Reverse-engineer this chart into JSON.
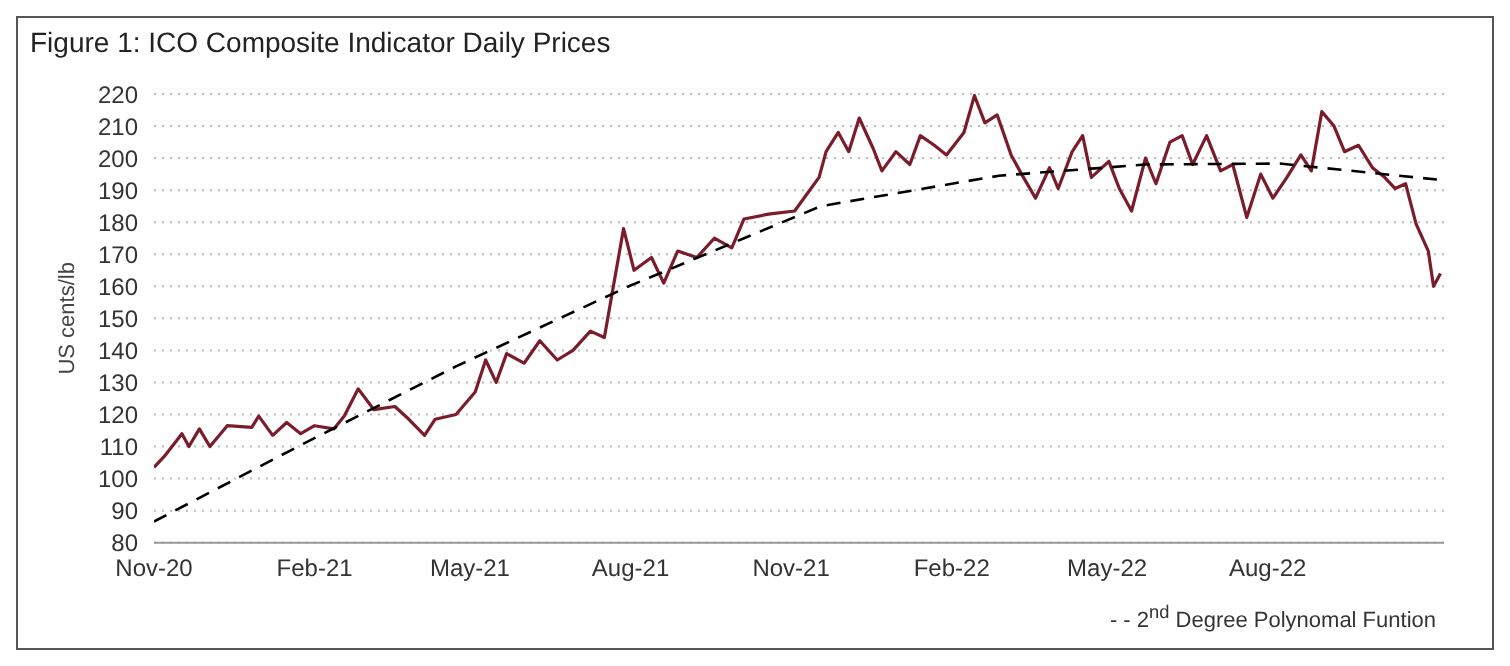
{
  "chart_data": {
    "type": "line",
    "title": "Figure 1: ICO Composite Indicator Daily Prices",
    "ylabel": "US cents/lb",
    "xlim": [
      "2020-11-01",
      "2022-11-10"
    ],
    "xticks": [
      {
        "value": "2020-11-01",
        "label": "Nov-20"
      },
      {
        "value": "2021-02-01",
        "label": "Feb-21"
      },
      {
        "value": "2021-05-01",
        "label": "May-21"
      },
      {
        "value": "2021-08-01",
        "label": "Aug-21"
      },
      {
        "value": "2021-11-01",
        "label": "Nov-21"
      },
      {
        "value": "2022-02-01",
        "label": "Feb-22"
      },
      {
        "value": "2022-05-01",
        "label": "May-22"
      },
      {
        "value": "2022-08-01",
        "label": "Aug-22"
      }
    ],
    "ylim": [
      80,
      220
    ],
    "yticks": [
      80,
      90,
      100,
      110,
      120,
      130,
      140,
      150,
      160,
      170,
      180,
      190,
      200,
      210,
      220
    ],
    "grid": "y",
    "legend": "bottom right",
    "marker": "none",
    "series": [
      {
        "color": "#7b1c2c",
        "line_style": "solid",
        "x": [
          "2020-11-01",
          "2020-11-07",
          "2020-11-17",
          "2020-11-21",
          "2020-11-27",
          "2020-12-03",
          "2020-12-13",
          "2020-12-27",
          "2020-12-31",
          "2021-01-08",
          "2021-01-16",
          "2021-01-24",
          "2021-02-01",
          "2021-02-12",
          "2021-02-18",
          "2021-02-26",
          "2021-03-07",
          "2021-03-19",
          "2021-03-27",
          "2021-04-05",
          "2021-04-11",
          "2021-04-23",
          "2021-05-04",
          "2021-05-10",
          "2021-05-16",
          "2021-05-22",
          "2021-06-01",
          "2021-06-10",
          "2021-06-20",
          "2021-06-29",
          "2021-07-09",
          "2021-07-17",
          "2021-07-28",
          "2021-08-03",
          "2021-08-13",
          "2021-08-20",
          "2021-08-28",
          "2021-09-08",
          "2021-09-18",
          "2021-09-28",
          "2021-10-05",
          "2021-10-19",
          "2021-11-03",
          "2021-11-11",
          "2021-11-17",
          "2021-11-21",
          "2021-11-28",
          "2021-12-04",
          "2021-12-10",
          "2021-12-18",
          "2021-12-23",
          "2021-12-31",
          "2022-01-08",
          "2022-01-14",
          "2022-01-22",
          "2022-01-29",
          "2022-02-08",
          "2022-02-14",
          "2022-02-20",
          "2022-02-27",
          "2022-03-07",
          "2022-03-13",
          "2022-03-21",
          "2022-03-29",
          "2022-04-03",
          "2022-04-11",
          "2022-04-17",
          "2022-04-22",
          "2022-05-02",
          "2022-05-08",
          "2022-05-15",
          "2022-05-23",
          "2022-05-29",
          "2022-06-06",
          "2022-06-13",
          "2022-06-19",
          "2022-06-27",
          "2022-07-05",
          "2022-07-12",
          "2022-07-20",
          "2022-07-28",
          "2022-08-04",
          "2022-08-12",
          "2022-08-20",
          "2022-08-26",
          "2022-09-01",
          "2022-09-08",
          "2022-09-14",
          "2022-09-22",
          "2022-09-30",
          "2022-10-07",
          "2022-10-13",
          "2022-10-19",
          "2022-10-25",
          "2022-11-01",
          "2022-11-04",
          "2022-11-08"
        ],
        "values": [
          103.5,
          107,
          114,
          110,
          115.5,
          110,
          116.5,
          116,
          119.5,
          113.5,
          117.5,
          114,
          116.5,
          115.5,
          119.5,
          128,
          121.5,
          122.5,
          118.5,
          113.5,
          118.5,
          120,
          127,
          137,
          130,
          139,
          136,
          143,
          137,
          140,
          146,
          144,
          178,
          165,
          169,
          161,
          171,
          169,
          175,
          172,
          181,
          182.5,
          183.5,
          189.5,
          194,
          202,
          208,
          202,
          212.5,
          203,
          196,
          202,
          198,
          207,
          204,
          201,
          208,
          219.5,
          211,
          213.5,
          201,
          195,
          187.5,
          197,
          190.5,
          202,
          207,
          194,
          199,
          190.5,
          183.5,
          200,
          192,
          205,
          207,
          198,
          207,
          196,
          198,
          181.5,
          195,
          187.5,
          194,
          201,
          196,
          214.5,
          210,
          202,
          204,
          197,
          194,
          190.5,
          192,
          179.5,
          171,
          160,
          164
        ]
      },
      {
        "name": "- - 2$^{nd}$ Degree Polynomal Funtion",
        "color": "#000000",
        "line_style": "dashed",
        "x": [
          "2020-11-01",
          "2021-01-26",
          "2021-04-23",
          "2021-07-31",
          "2021-10-05",
          "2021-11-18",
          "2022-02-28",
          "2022-05-23",
          "2022-08-08",
          "2022-11-08"
        ],
        "values": [
          86.6,
          111,
          135,
          160,
          175,
          185,
          194.5,
          198,
          198.3,
          193.2
        ]
      }
    ]
  }
}
